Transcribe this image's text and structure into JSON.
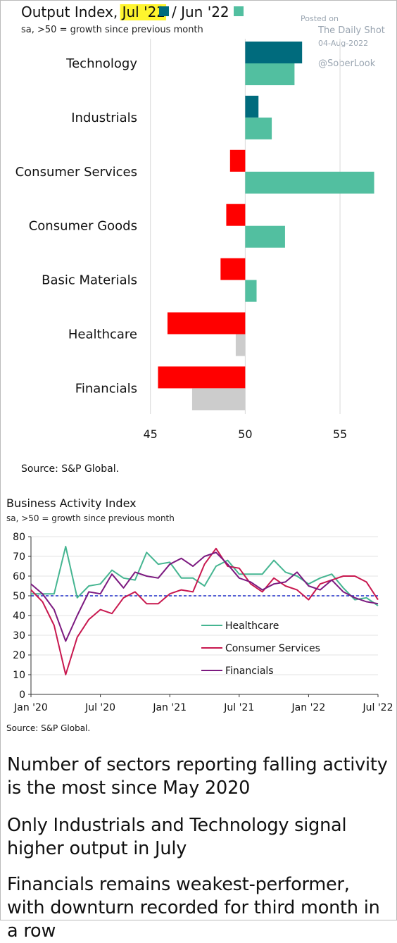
{
  "watermark": {
    "posted_on": "Posted on",
    "site": "The Daily Shot",
    "date": "04-Aug-2022",
    "handle": "@SoberLook"
  },
  "chart_data": [
    {
      "type": "bar",
      "orientation": "horizontal",
      "title_prefix": "Output Index, ",
      "title_highlight": "Jul '22",
      "title_separator": " / Jun '22",
      "subtitle": "sa, >50 = growth since previous month",
      "categories": [
        "Technology",
        "Industrials",
        "Consumer Services",
        "Consumer Goods",
        "Basic Materials",
        "Healthcare",
        "Financials"
      ],
      "series": [
        {
          "name": "Jul '22",
          "values": [
            53.0,
            50.7,
            49.2,
            49.0,
            48.7,
            45.9,
            45.4
          ]
        },
        {
          "name": "Jun '22",
          "values": [
            52.6,
            51.4,
            56.8,
            52.1,
            50.6,
            49.5,
            47.2
          ]
        }
      ],
      "xticks": [
        45,
        50,
        55
      ],
      "xlim": [
        40,
        57.3
      ],
      "baseline": 50,
      "source": "Source: S&P Global.",
      "colors": {
        "jul_up": "#006B7D",
        "jun_up": "#52BFA0",
        "jul_down": "#FF0000",
        "jun_down": "#CCCCCC",
        "highlight": "#FFF52E"
      }
    },
    {
      "type": "line",
      "title": "Business Activity Index",
      "subtitle": "sa, >50 = growth since previous month",
      "x": [
        "Jan '20",
        "Feb '20",
        "Mar '20",
        "Apr '20",
        "May '20",
        "Jun '20",
        "Jul '20",
        "Aug '20",
        "Sep '20",
        "Oct '20",
        "Nov '20",
        "Dec '20",
        "Jan '21",
        "Feb '21",
        "Mar '21",
        "Apr '21",
        "May '21",
        "Jun '21",
        "Jul '21",
        "Aug '21",
        "Sep '21",
        "Oct '21",
        "Nov '21",
        "Dec '21",
        "Jan '22",
        "Feb '22",
        "Mar '22",
        "Apr '22",
        "May '22",
        "Jun '22",
        "Jul '22"
      ],
      "series": [
        {
          "name": "Healthcare",
          "color": "#45B591",
          "values": [
            51,
            51,
            51,
            75,
            49,
            55,
            56,
            63,
            59,
            58,
            72,
            66,
            67,
            59,
            59,
            55,
            65,
            68,
            61,
            61,
            61,
            68,
            62,
            60,
            56,
            59,
            61,
            54,
            48,
            49,
            45
          ]
        },
        {
          "name": "Consumer Services",
          "color": "#C8184F",
          "values": [
            53,
            47,
            35,
            10,
            29,
            38,
            43,
            41,
            49,
            52,
            46,
            46,
            51,
            53,
            52,
            66,
            74,
            65,
            64,
            56,
            52,
            59,
            55,
            53,
            48,
            56,
            58,
            60,
            60,
            57,
            48
          ]
        },
        {
          "name": "Financials",
          "color": "#7C1A80",
          "values": [
            56,
            51,
            43,
            27,
            40,
            52,
            51,
            61,
            54,
            62,
            60,
            59,
            66,
            69,
            65,
            70,
            72,
            66,
            59,
            57,
            53,
            56,
            57,
            62,
            55,
            53,
            58,
            52,
            49,
            47,
            46
          ]
        }
      ],
      "xticks": [
        "Jan '20",
        "Jul '20",
        "Jan '21",
        "Jul '21",
        "Jan '22",
        "Jul '22"
      ],
      "yticks": [
        0,
        10,
        20,
        30,
        40,
        50,
        60,
        70,
        80
      ],
      "ylim": [
        0,
        80
      ],
      "reference_line": 50,
      "reference_color": "#1E2DC8",
      "legend_position": "center-right",
      "source": "Source: S&P Global."
    }
  ],
  "headlines": [
    "Number of sectors reporting falling activity is the most since May 2020",
    "Only Industrials and Technology signal higher output in July",
    "Financials remains weakest-performer, with downturn recorded for third month in a row"
  ]
}
